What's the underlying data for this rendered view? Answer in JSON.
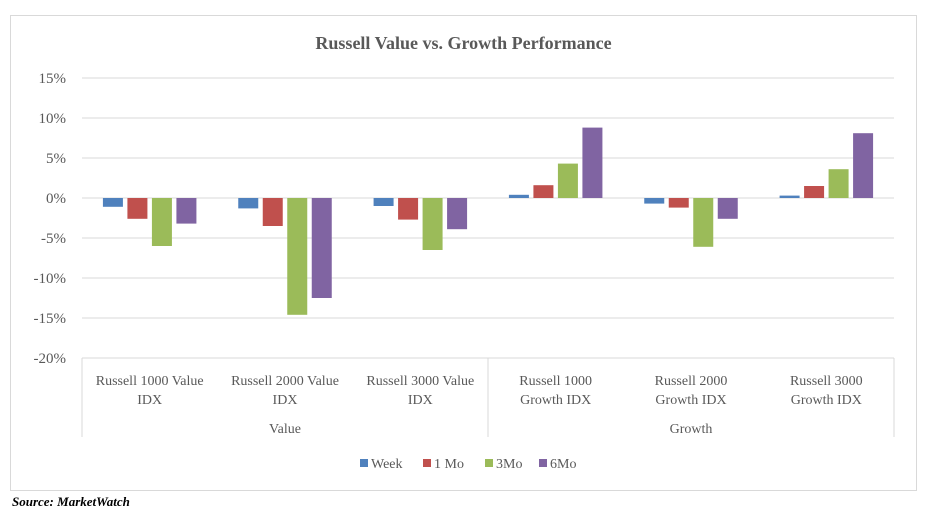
{
  "chart_data": {
    "type": "bar",
    "title": "Russell Value vs. Growth Performance",
    "categories": [
      [
        "Russell 1000 Value",
        "IDX"
      ],
      [
        "Russell 2000 Value",
        "IDX"
      ],
      [
        "Russell 3000 Value",
        "IDX"
      ],
      [
        "Russell 1000",
        "Growth IDX"
      ],
      [
        "Russell 2000",
        "Growth IDX"
      ],
      [
        "Russell 3000",
        "Growth IDX"
      ]
    ],
    "groups": [
      {
        "label": "Value",
        "categories": [
          0,
          1,
          2
        ]
      },
      {
        "label": "Growth",
        "categories": [
          3,
          4,
          5
        ]
      }
    ],
    "series": [
      {
        "name": "Week",
        "color": "#4f81bd",
        "values": [
          -1.1,
          -1.3,
          -1.0,
          0.4,
          -0.7,
          0.3
        ]
      },
      {
        "name": "1 Mo",
        "color": "#c0504d",
        "values": [
          -2.6,
          -3.5,
          -2.7,
          1.6,
          -1.2,
          1.5
        ]
      },
      {
        "name": "3Mo",
        "color": "#9bbb59",
        "values": [
          -6.0,
          -14.6,
          -6.5,
          4.3,
          -6.1,
          3.6
        ]
      },
      {
        "name": "6Mo",
        "color": "#8064a2",
        "values": [
          -3.2,
          -12.5,
          -3.9,
          8.8,
          -2.6,
          8.1
        ]
      }
    ],
    "ylim": [
      -20,
      15
    ],
    "yticks": [
      "-20%",
      "-15%",
      "-10%",
      "-5%",
      "0%",
      "5%",
      "10%",
      "15%"
    ],
    "grid": true,
    "legend_position": "bottom"
  },
  "source_note": "Source: MarketWatch"
}
